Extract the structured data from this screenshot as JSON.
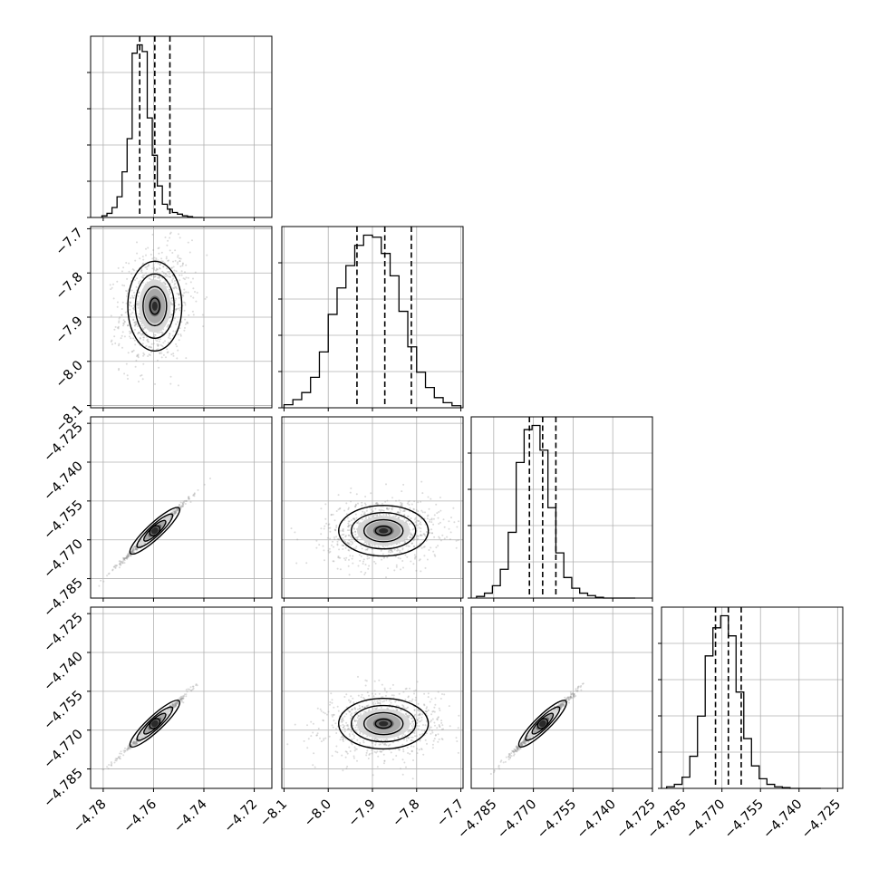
{
  "chart_data": {
    "type": "corner",
    "parameters": 4,
    "grid": true,
    "quantile_lines": "dashed",
    "point_color": "#999999",
    "density_color": "#000000",
    "x_axes": [
      {
        "lim": [
          -4.785,
          -4.713
        ],
        "ticks": [
          -4.78,
          -4.76,
          -4.74,
          -4.72
        ],
        "tick_labels": [
          "−4.78",
          "−4.76",
          "−4.74",
          "−4.72"
        ]
      },
      {
        "lim": [
          -8.105,
          -7.695
        ],
        "ticks": [
          -8.1,
          -8.0,
          -7.9,
          -7.8,
          -7.7
        ],
        "tick_labels": [
          "−8.1",
          "−8.0",
          "−7.9",
          "−7.8",
          "−7.7"
        ]
      },
      {
        "lim": [
          -4.7935,
          -4.725
        ],
        "ticks": [
          -4.785,
          -4.77,
          -4.755,
          -4.74,
          -4.725
        ],
        "tick_labels": [
          "−4.785",
          "−4.770",
          "−4.755",
          "−4.740",
          "−4.725"
        ]
      },
      {
        "lim": [
          -4.7935,
          -4.723
        ],
        "ticks": [
          -4.785,
          -4.77,
          -4.755,
          -4.74,
          -4.725
        ],
        "tick_labels": [
          "−4.785",
          "−4.770",
          "−4.755",
          "−4.740",
          "−4.725"
        ]
      }
    ],
    "y_axes": [
      null,
      {
        "lim": [
          -8.105,
          -7.695
        ],
        "ticks": [
          -8.1,
          -8.0,
          -7.9,
          -7.8,
          -7.7
        ],
        "tick_labels": [
          "−8.1",
          "−8.0",
          "−7.9",
          "−7.8",
          "−7.7"
        ]
      },
      {
        "lim": [
          -4.7925,
          -4.7225
        ],
        "ticks": [
          -4.785,
          -4.77,
          -4.755,
          -4.74,
          -4.725
        ],
        "tick_labels": [
          "−4.785",
          "−4.770",
          "−4.755",
          "−4.740",
          "−4.725"
        ]
      },
      {
        "lim": [
          -4.7925,
          -4.7225
        ],
        "ticks": [
          -4.785,
          -4.77,
          -4.755,
          -4.74,
          -4.725
        ],
        "tick_labels": [
          "−4.785",
          "−4.770",
          "−4.755",
          "−4.740",
          "−4.725"
        ]
      }
    ],
    "histograms": [
      {
        "param": 0,
        "bin_start": -4.7805,
        "bin_width": 0.002,
        "counts": [
          2,
          5,
          12,
          25,
          55,
          95,
          198,
          208,
          200,
          120,
          75,
          38,
          16,
          10,
          6,
          4,
          2,
          1,
          0,
          0
        ],
        "quantiles": [
          -4.7655,
          -4.7595,
          -4.7535
        ],
        "median_ref": -4.7595
      },
      {
        "param": 1,
        "bin_start": -8.1,
        "bin_width": 0.02,
        "counts": [
          3,
          8,
          15,
          30,
          55,
          92,
          118,
          140,
          160,
          170,
          168,
          152,
          130,
          95,
          60,
          35,
          20,
          10,
          5,
          2
        ],
        "quantiles": [
          -7.935,
          -7.872,
          -7.812
        ],
        "median_ref": -7.872
      },
      {
        "param": 2,
        "bin_start": -4.7915,
        "bin_width": 0.003,
        "counts": [
          2,
          6,
          15,
          35,
          80,
          165,
          205,
          210,
          180,
          110,
          55,
          25,
          12,
          6,
          3,
          1,
          0,
          0,
          0,
          0
        ],
        "quantiles": [
          -4.7715,
          -4.7665,
          -4.7615
        ],
        "median_ref": -4.7665
      },
      {
        "param": 3,
        "bin_start": -4.7915,
        "bin_width": 0.003,
        "counts": [
          2,
          5,
          14,
          40,
          90,
          165,
          200,
          215,
          190,
          120,
          62,
          28,
          12,
          5,
          2,
          1,
          0,
          0,
          0,
          0
        ],
        "quantiles": [
          -4.7725,
          -4.7675,
          -4.7625
        ],
        "median_ref": -4.7675
      }
    ],
    "scatter_panels": [
      {
        "row": 1,
        "col": 0,
        "mean": [
          -4.7595,
          -7.875
        ],
        "sd": [
          0.0055,
          0.052
        ],
        "corr": 0.15,
        "points": 900
      },
      {
        "row": 2,
        "col": 0,
        "mean": [
          -4.7595,
          -4.7665
        ],
        "sd": [
          0.0055,
          0.005
        ],
        "corr": 0.995,
        "points": 700
      },
      {
        "row": 2,
        "col": 1,
        "mean": [
          -7.875,
          -4.7665
        ],
        "sd": [
          0.052,
          0.005
        ],
        "corr": 0.1,
        "points": 900
      },
      {
        "row": 3,
        "col": 0,
        "mean": [
          -4.7595,
          -4.7675
        ],
        "sd": [
          0.0055,
          0.005
        ],
        "corr": 0.995,
        "points": 700
      },
      {
        "row": 3,
        "col": 1,
        "mean": [
          -7.875,
          -4.7675
        ],
        "sd": [
          0.052,
          0.005
        ],
        "corr": 0.1,
        "points": 900
      },
      {
        "row": 3,
        "col": 2,
        "mean": [
          -4.7665,
          -4.7675
        ],
        "sd": [
          0.005,
          0.005
        ],
        "corr": 0.995,
        "points": 700
      }
    ]
  }
}
